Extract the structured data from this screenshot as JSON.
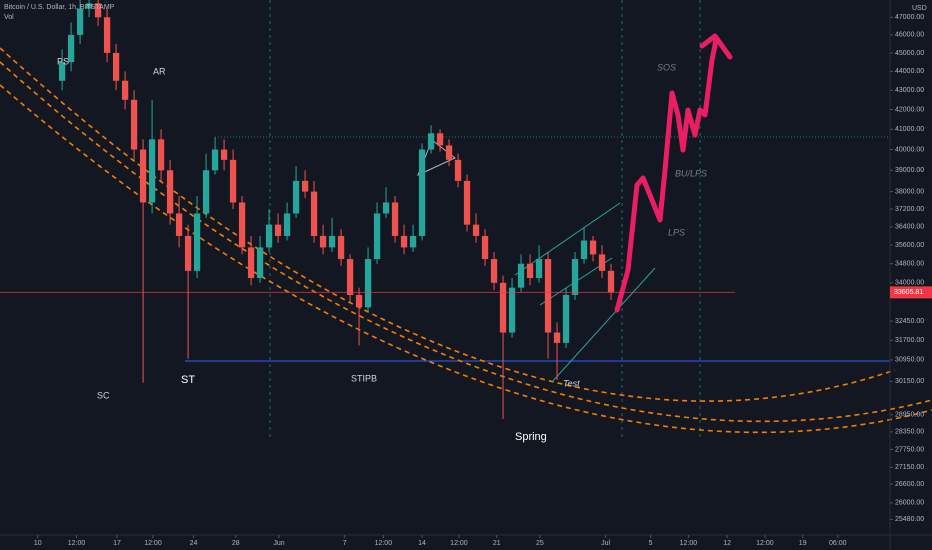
{
  "chart_data": {
    "type": "candlestick",
    "title": "Bitcoin / U.S. Dollar, 1h, BITSTAMP",
    "subtitle": "Vol",
    "y_axis_label": "USD",
    "log_scale": true,
    "up_color": "#26a69a",
    "down_color": "#ef5350",
    "ylim": [
      25000,
      48000
    ],
    "yticks": [
      {
        "value": 47000,
        "label": "47000.00"
      },
      {
        "value": 46000,
        "label": "46000.00"
      },
      {
        "value": 45000,
        "label": "45000.00"
      },
      {
        "value": 44000,
        "label": "44000.00"
      },
      {
        "value": 43000,
        "label": "43000.00"
      },
      {
        "value": 42000,
        "label": "42000.00"
      },
      {
        "value": 41000,
        "label": "41000.00"
      },
      {
        "value": 40000,
        "label": "40000.00"
      },
      {
        "value": 39000,
        "label": "39000.00"
      },
      {
        "value": 38000,
        "label": "38000.00"
      },
      {
        "value": 37200,
        "label": "37200.00"
      },
      {
        "value": 36400,
        "label": "36400.00"
      },
      {
        "value": 35600,
        "label": "35600.00"
      },
      {
        "value": 34800,
        "label": "34800.00"
      },
      {
        "value": 34000,
        "label": "34000.00"
      },
      {
        "value": 32450,
        "label": "32450.00"
      },
      {
        "value": 31700,
        "label": "31700.00"
      },
      {
        "value": 30950,
        "label": "30950.00"
      },
      {
        "value": 30150,
        "label": "30150.00"
      },
      {
        "value": 28950,
        "label": "28950.00"
      },
      {
        "value": 28350,
        "label": "28350.00"
      },
      {
        "value": 27750,
        "label": "27750.00"
      },
      {
        "value": 27150,
        "label": "27150.00"
      },
      {
        "value": 26600,
        "label": "26600.00"
      },
      {
        "value": 26000,
        "label": "26000.00"
      },
      {
        "value": 25480,
        "label": "25480.00"
      }
    ],
    "xlim": [
      -6.9,
      92
    ],
    "xticks": [
      {
        "value": -2.7,
        "label": "10"
      },
      {
        "value": 1.6,
        "label": "12:00"
      },
      {
        "value": 6.1,
        "label": "17"
      },
      {
        "value": 10.1,
        "label": "12:00"
      },
      {
        "value": 14.6,
        "label": "24"
      },
      {
        "value": 19.3,
        "label": "28"
      },
      {
        "value": 24.1,
        "label": "Jun"
      },
      {
        "value": 31.4,
        "label": "7"
      },
      {
        "value": 35.7,
        "label": "12:00"
      },
      {
        "value": 40,
        "label": "14"
      },
      {
        "value": 44.1,
        "label": "12:00"
      },
      {
        "value": 48.3,
        "label": "21"
      },
      {
        "value": 53.1,
        "label": "25"
      },
      {
        "value": 60.4,
        "label": "Jul"
      },
      {
        "value": 65.4,
        "label": "5"
      },
      {
        "value": 69.6,
        "label": "12:00"
      },
      {
        "value": 73.9,
        "label": "12"
      },
      {
        "value": 78.1,
        "label": "12:00"
      },
      {
        "value": 82.3,
        "label": "19"
      },
      {
        "value": 86.2,
        "label": "06:00"
      }
    ],
    "last_price": 33605.81,
    "last_price_color": "#f23645",
    "open": [
      43500,
      44500,
      46000,
      47500,
      47800,
      47000,
      45000,
      43500,
      42500,
      40000,
      37500,
      40500,
      39000,
      37000,
      36000,
      34500,
      37000,
      39000,
      40000,
      39500,
      37500,
      35500,
      34200,
      35500,
      36500,
      36000,
      37000,
      38500,
      38000,
      36000,
      35500,
      36000,
      35000,
      33500,
      33000,
      35000,
      37000,
      37500,
      36000,
      35500,
      36000,
      40000,
      40800,
      40200,
      39500,
      38500,
      36500,
      36000,
      35000,
      34000,
      32000,
      33800,
      34800,
      34200,
      35000,
      32000,
      31600,
      33500,
      35000,
      35800,
      35200,
      34500
    ],
    "high": [
      45200,
      46700,
      48000,
      48000,
      48000,
      47500,
      45500,
      44000,
      43000,
      40500,
      42500,
      41000,
      39500,
      37800,
      36500,
      37800,
      39800,
      40600,
      40500,
      40000,
      37800,
      36000,
      36000,
      37200,
      37000,
      37500,
      39200,
      39000,
      38500,
      36500,
      36800,
      36300,
      35200,
      33800,
      35500,
      37500,
      38200,
      37800,
      36500,
      36500,
      40300,
      41200,
      41000,
      40500,
      39800,
      38800,
      37000,
      36300,
      35300,
      34300,
      34200,
      35200,
      35200,
      35600,
      35300,
      32400,
      33800,
      35300,
      36400,
      36000,
      35600,
      34800
    ],
    "low": [
      43000,
      44000,
      45500,
      47000,
      46500,
      44500,
      43000,
      42000,
      39500,
      30100,
      37000,
      38500,
      36500,
      35500,
      31000,
      34200,
      36800,
      38800,
      39000,
      37200,
      35200,
      33900,
      34000,
      35300,
      35700,
      35800,
      36800,
      37700,
      35700,
      35200,
      35300,
      34700,
      33200,
      31500,
      32800,
      34800,
      36800,
      35700,
      35200,
      35300,
      35800,
      39800,
      39900,
      39200,
      38200,
      36200,
      35700,
      34700,
      33700,
      28800,
      31800,
      33600,
      33900,
      34000,
      31000,
      30200,
      31400,
      33300,
      34800,
      34900,
      34200,
      33300
    ],
    "close": [
      44500,
      46000,
      47500,
      47800,
      47000,
      45000,
      43500,
      42500,
      40000,
      37500,
      40500,
      39000,
      37000,
      36000,
      34500,
      37000,
      39000,
      40000,
      39500,
      37500,
      35500,
      34200,
      35500,
      36500,
      36000,
      37000,
      38500,
      38000,
      36000,
      35500,
      36000,
      35000,
      33500,
      33000,
      35000,
      37000,
      37500,
      36000,
      35500,
      36000,
      40000,
      40800,
      40200,
      39500,
      38500,
      36500,
      36000,
      35000,
      34000,
      32000,
      33800,
      34800,
      34200,
      35000,
      32000,
      31600,
      33500,
      35000,
      35800,
      35200,
      34500,
      33600
    ],
    "annotations": [
      "PS",
      "AR",
      "SC",
      "ST",
      "STIPB",
      "Spring",
      "Test",
      "LPS",
      "BU/LPS",
      "SOS"
    ]
  }
}
